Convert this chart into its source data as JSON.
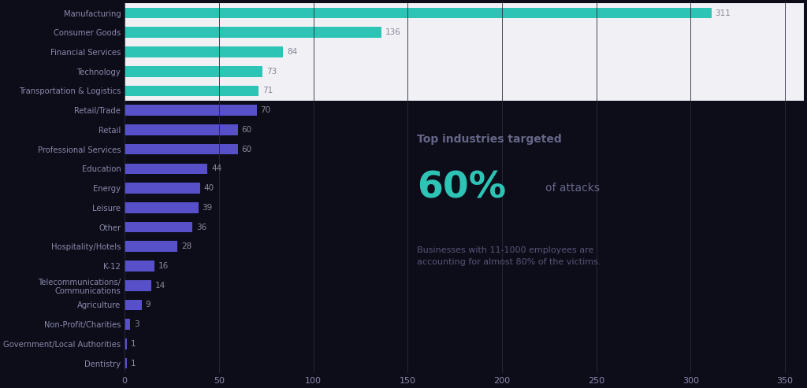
{
  "categories": [
    "Manufacturing",
    "Consumer Goods",
    "Financial Services",
    "Technology",
    "Transportation & Logistics",
    "Retail/Trade",
    "Retail",
    "Professional Services",
    "Education",
    "Energy",
    "Leisure",
    "Other",
    "Hospitality/Hotels",
    "K-12",
    "Telecommunications/\nCommunications",
    "Agriculture",
    "Non-Profit/Charities",
    "Government/Local Authorities",
    "Dentistry"
  ],
  "values": [
    311,
    136,
    84,
    73,
    71,
    70,
    60,
    60,
    44,
    40,
    39,
    36,
    28,
    16,
    14,
    9,
    3,
    1,
    1
  ],
  "teal_color": "#2dc4b6",
  "blue_color": "#5850c8",
  "background_color": "#0d0d1a",
  "label_color": "#8888aa",
  "value_color": "#888899",
  "annotation_title": "Top industries targeted",
  "annotation_pct": "60%",
  "annotation_mid": "of attacks",
  "annotation_body": "Businesses with 11-1000 employees are\naccounting for almost 80% of the victims.",
  "annotation_pct_color": "#2dc4b6",
  "annotation_title_color": "#666688",
  "annotation_text_color": "#555577",
  "panel_color": "#f0f0f5",
  "xlim": [
    0,
    360
  ],
  "xticks": [
    0,
    50,
    100,
    150,
    200,
    250,
    300,
    350
  ],
  "figsize": [
    10.24,
    4.93
  ],
  "dpi": 100,
  "num_teal": 5
}
